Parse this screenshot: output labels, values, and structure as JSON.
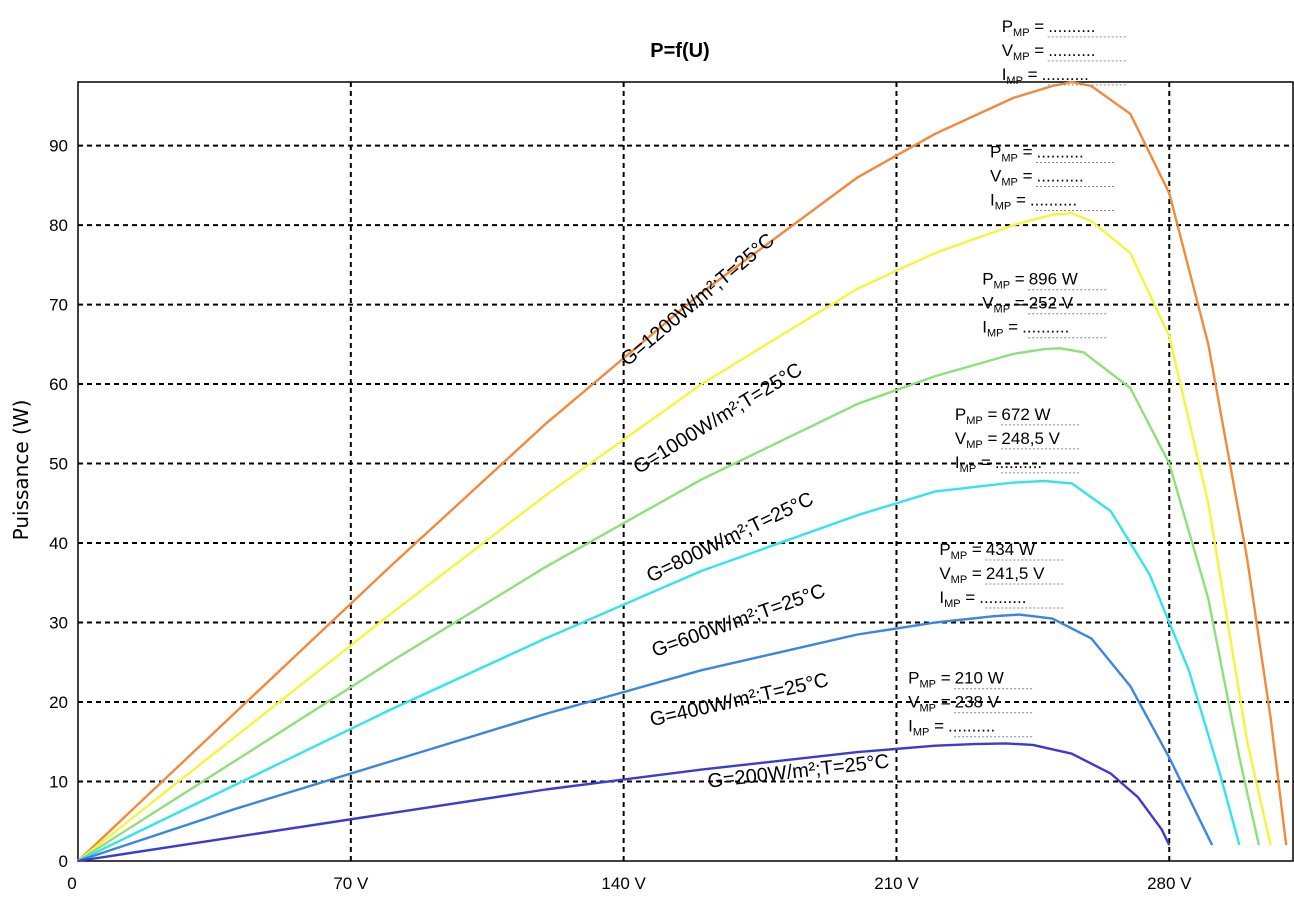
{
  "chart_data": {
    "type": "line",
    "title": "P=f(U)",
    "xlabel": "",
    "ylabel": "Puissance (W)",
    "xlim": [
      0,
      312
    ],
    "ylim": [
      0,
      98
    ],
    "x_ticks": [
      {
        "value": 0,
        "label": "0"
      },
      {
        "value": 70,
        "label": "70 V"
      },
      {
        "value": 140,
        "label": "140 V"
      },
      {
        "value": 210,
        "label": "210 V"
      },
      {
        "value": 280,
        "label": "280 V"
      }
    ],
    "y_ticks": [
      0,
      10,
      20,
      30,
      40,
      50,
      60,
      70,
      80,
      90
    ],
    "grid": true,
    "legend": "none",
    "series": [
      {
        "name": "G=1200W/m²;T=25°C",
        "color": "#f08a3c",
        "label_at": [
          160,
          70
        ],
        "x": [
          0,
          40,
          80,
          120,
          160,
          200,
          220,
          240,
          250,
          255,
          260,
          270,
          280,
          290,
          300,
          306,
          310
        ],
        "y": [
          0,
          18.5,
          37,
          55,
          71.5,
          86,
          91.5,
          96,
          97.5,
          98,
          97.5,
          94,
          84,
          65,
          38,
          18,
          2
        ]
      },
      {
        "name": "G=1000W/m²;T=25°C",
        "color": "#f5f53a",
        "label_at": [
          165,
          55
        ],
        "x": [
          0,
          40,
          80,
          120,
          160,
          200,
          220,
          240,
          250,
          255,
          260,
          270,
          280,
          290,
          300,
          306
        ],
        "y": [
          0,
          15.5,
          31,
          46,
          60,
          72,
          76.5,
          80,
          81.3,
          81.5,
          80.5,
          76.5,
          66,
          45,
          15,
          2
        ]
      },
      {
        "name": "G=800W/m²;T=25°C",
        "color": "#8de07a",
        "label_at": [
          168,
          40
        ],
        "x": [
          0,
          40,
          80,
          120,
          160,
          200,
          220,
          240,
          248,
          252,
          258,
          270,
          280,
          290,
          298,
          303
        ],
        "y": [
          0,
          12.5,
          25,
          37,
          48,
          57.5,
          61,
          63.8,
          64.4,
          64.5,
          64,
          59.5,
          50,
          33,
          13,
          2
        ]
      },
      {
        "name": "G=600W/m²;T=25°C",
        "color": "#33e5e8",
        "label_at": [
          170,
          29.5
        ],
        "x": [
          0,
          40,
          80,
          120,
          160,
          200,
          220,
          240,
          248,
          255,
          265,
          275,
          285,
          293,
          298
        ],
        "y": [
          0,
          9.5,
          19,
          28,
          36.5,
          43.5,
          46.5,
          47.6,
          47.8,
          47.5,
          44,
          36,
          24,
          11,
          2
        ]
      },
      {
        "name": "G=400W/m²;T=25°C",
        "color": "#3a86e0",
        "label_at": [
          170,
          19.5
        ],
        "x": [
          0,
          40,
          80,
          120,
          160,
          200,
          220,
          235,
          241.5,
          250,
          260,
          270,
          280,
          288,
          291
        ],
        "y": [
          0,
          6.5,
          12.5,
          18.5,
          24,
          28.5,
          30,
          30.8,
          31,
          30.5,
          28,
          22,
          13,
          5,
          2
        ]
      },
      {
        "name": "G=200W/m²;T=25°C",
        "color": "#3c3ad0",
        "label_at": [
          185,
          10.5
        ],
        "x": [
          0,
          40,
          80,
          120,
          160,
          200,
          220,
          230,
          238,
          245,
          255,
          265,
          272,
          278,
          280
        ],
        "y": [
          0,
          3,
          6,
          9,
          11.5,
          13.7,
          14.5,
          14.7,
          14.8,
          14.6,
          13.5,
          11,
          8,
          4,
          2
        ]
      }
    ],
    "annotations": [
      {
        "at": [
          237,
          104.3
        ],
        "p": "..........",
        "v": "..........",
        "i": "..........",
        "p_pre": "P",
        "v_pre": "V",
        "i_pre": "I",
        "sub": "MP",
        "eq": " ="
      },
      {
        "at": [
          234,
          88.5
        ],
        "p": "..........",
        "v": "..........",
        "i": "..........",
        "p_pre": "P",
        "v_pre": "V",
        "i_pre": "I",
        "sub": "MP",
        "eq": " ="
      },
      {
        "at": [
          232,
          72.5
        ],
        "p": "896 W",
        "v": "252 V",
        "i": "..........",
        "p_pre": "P",
        "v_pre": "V",
        "i_pre": "I",
        "sub": "MP",
        "eq": " ="
      },
      {
        "at": [
          225,
          55.5
        ],
        "p": "672 W",
        "v": "248,5 V",
        "i": "..........",
        "p_pre": "P",
        "v_pre": "V",
        "i_pre": "I",
        "sub": "MP",
        "eq": " ="
      },
      {
        "at": [
          221,
          38.5
        ],
        "p": "434 W",
        "v": "241,5 V",
        "i": "..........",
        "p_pre": "P",
        "v_pre": "V",
        "i_pre": "I",
        "sub": "MP",
        "eq": " ="
      },
      {
        "at": [
          213,
          22.3
        ],
        "p": "210 W",
        "v": "238 V",
        "i": "..........",
        "p_pre": "P",
        "v_pre": "V",
        "i_pre": "I",
        "sub": "MP",
        "eq": " ="
      }
    ]
  }
}
